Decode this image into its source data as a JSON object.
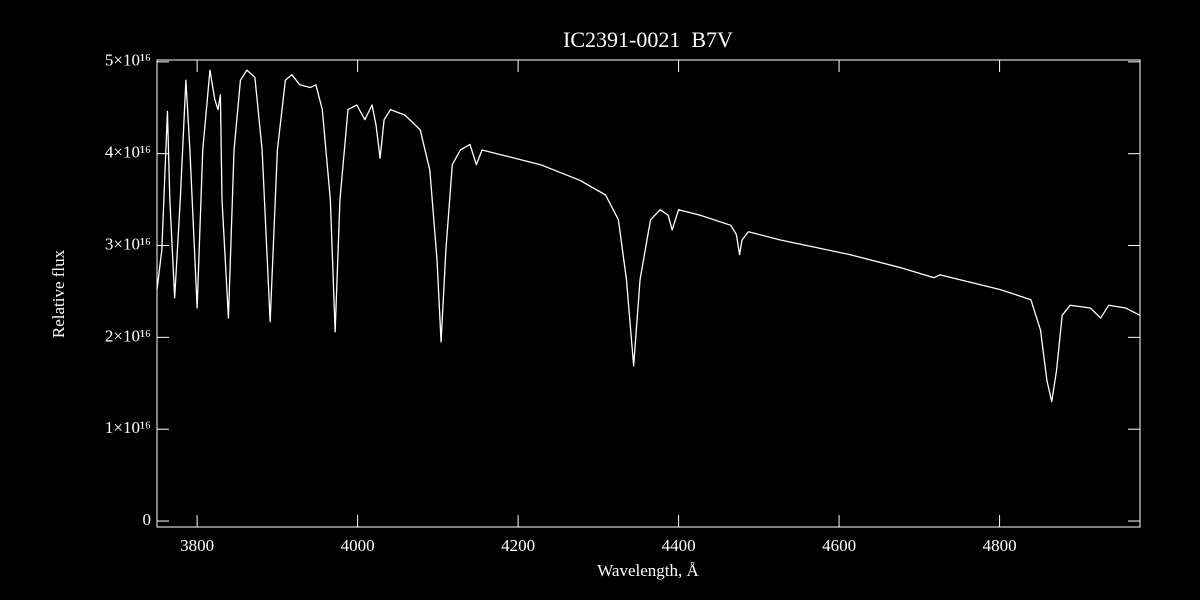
{
  "chart_data": {
    "type": "line",
    "title": "IC2391-0021  B7V",
    "xlabel": "Wavelength, Å",
    "ylabel": "Relative flux",
    "xlim": [
      3750,
      4975
    ],
    "ylim": [
      -650000000000000.0,
      5.02e+16
    ],
    "xticks": [
      3800,
      4000,
      4200,
      4400,
      4600,
      4800
    ],
    "yticks": [
      0,
      {
        "value": 1e+16,
        "label": "1×10¹⁶"
      },
      {
        "value": 2e+16,
        "label": "2×10¹⁶"
      },
      {
        "value": 3e+16,
        "label": "3×10¹⁶"
      },
      {
        "value": 4e+16,
        "label": "4×10¹⁶"
      },
      {
        "value": 5e+16,
        "label": "5×10¹⁶"
      }
    ],
    "color": "#ffffff",
    "x": [
      3750,
      3756,
      3763,
      3766,
      3772,
      3779,
      3786,
      3791,
      3800,
      3807,
      3816,
      3822,
      3826,
      3829,
      3831,
      3839,
      3846,
      3854,
      3862,
      3872,
      3881,
      3891,
      3900,
      3910,
      3918,
      3928,
      3941,
      3948,
      3956,
      3966,
      3972,
      3978,
      3988,
      3999,
      4009,
      4018,
      4023,
      4028,
      4033,
      4041,
      4059,
      4078,
      4090,
      4099,
      4104,
      4110,
      4118,
      4128,
      4140,
      4148,
      4155,
      4178,
      4228,
      4277,
      4309,
      4325,
      4335,
      4344,
      4352,
      4365,
      4377,
      4387,
      4392,
      4400,
      4427,
      4465,
      4472,
      4476,
      4479,
      4487,
      4527,
      4614,
      4676,
      4718,
      4726,
      4801,
      4839,
      4851,
      4859,
      4865,
      4871,
      4878,
      4888,
      4913,
      4926,
      4936,
      4957,
      4975
    ],
    "values": [
      2.52e+16,
      2.95e+16,
      4.46e+16,
      3.5e+16,
      2.43e+16,
      3.5e+16,
      4.8e+16,
      4.04e+16,
      2.32e+16,
      4.04e+16,
      4.91e+16,
      4.59e+16,
      4.48e+16,
      4.64e+16,
      3.5e+16,
      2.21e+16,
      4.04e+16,
      4.8e+16,
      4.91e+16,
      4.83e+16,
      4.04e+16,
      2.17e+16,
      4.04e+16,
      4.8e+16,
      4.86e+16,
      4.75e+16,
      4.72e+16,
      4.75e+16,
      4.48e+16,
      3.5e+16,
      2.06e+16,
      3.5e+16,
      4.48e+16,
      4.53e+16,
      4.37e+16,
      4.53e+16,
      4.31e+16,
      3.95e+16,
      4.37e+16,
      4.48e+16,
      4.42e+16,
      4.26e+16,
      3.82e+16,
      2.84e+16,
      1.95e+16,
      2.95e+16,
      3.88e+16,
      4.04e+16,
      4.1e+16,
      3.88e+16,
      4.04e+16,
      3.99e+16,
      3.88e+16,
      3.71e+16,
      3.55e+16,
      3.28e+16,
      2.63e+16,
      1.69e+16,
      2.63e+16,
      3.28e+16,
      3.39e+16,
      3.33e+16,
      3.17e+16,
      3.39e+16,
      3.33e+16,
      3.22e+16,
      3.12e+16,
      2.9e+16,
      3.06e+16,
      3.15e+16,
      3.06e+16,
      2.9e+16,
      2.76e+16,
      2.65e+16,
      2.68e+16,
      2.52e+16,
      2.41e+16,
      2.08e+16,
      1.53e+16,
      1.3e+16,
      1.64e+16,
      2.24e+16,
      2.35e+16,
      2.32e+16,
      2.21e+16,
      2.35e+16,
      2.32e+16,
      2.24e+16
    ]
  }
}
